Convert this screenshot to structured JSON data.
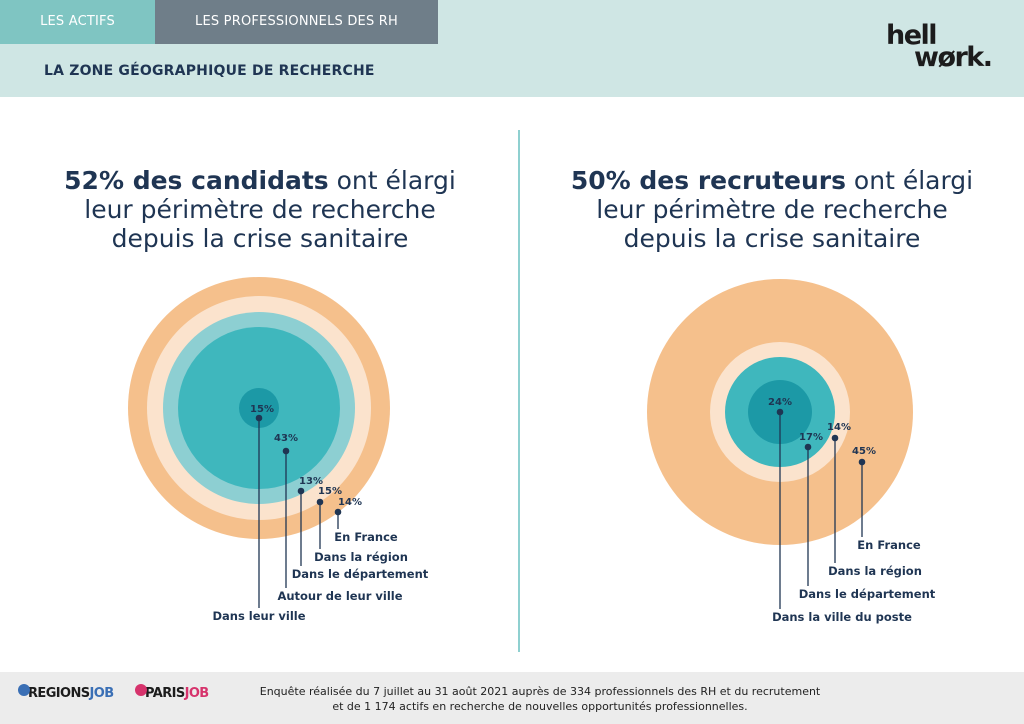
{
  "tabs": [
    "LES ACTIFS",
    "LES PROFESSIONNELS DES RH"
  ],
  "section_title": "LA ZONE GÉOGRAPHIQUE DE RECHERCHE",
  "logo": {
    "line1": "hell",
    "line2": "wørk",
    "dot": "."
  },
  "left": {
    "headline_bold": "52% des candidats",
    "headline_rest1": " ont élargi",
    "headline_line2": "leur périmètre de recherche",
    "headline_line3": "depuis la crise sanitaire"
  },
  "right": {
    "headline_bold": "50% des recruteurs",
    "headline_rest1": " ont élargi",
    "headline_line2": "leur périmètre de recherche",
    "headline_line3": "depuis la crise sanitaire"
  },
  "colors": {
    "orange": "#f5c08c",
    "cream": "#fbe3cd",
    "light_teal": "#8dcfd2",
    "teal": "#3fb7bd",
    "dark_teal": "#1c99a6",
    "navy": "#1f3553"
  },
  "chart_data": [
    {
      "type": "concentric",
      "series": [
        {
          "name": "Dans leur ville",
          "value": 15
        },
        {
          "name": "Autour de leur ville",
          "value": 43
        },
        {
          "name": "Dans le département",
          "value": 13
        },
        {
          "name": "Dans la région",
          "value": 15
        },
        {
          "name": "En France",
          "value": 14
        }
      ]
    },
    {
      "type": "concentric",
      "series": [
        {
          "name": "Dans la ville du poste",
          "value": 24
        },
        {
          "name": "Dans le département",
          "value": 17
        },
        {
          "name": "Dans la région",
          "value": 14
        },
        {
          "name": "En France",
          "value": 45
        }
      ]
    }
  ],
  "footer": {
    "line1": "Enquête réalisée du 7 juillet au 31 août 2021 auprès de 334 professionnels des RH et du recrutement",
    "line2": "et de 1 174 actifs en recherche de nouvelles opportunités professionnelles.",
    "brand1_a": "REGIONS",
    "brand1_b": "JOB",
    "brand2_a": "PARIS",
    "brand2_b": "JOB"
  }
}
